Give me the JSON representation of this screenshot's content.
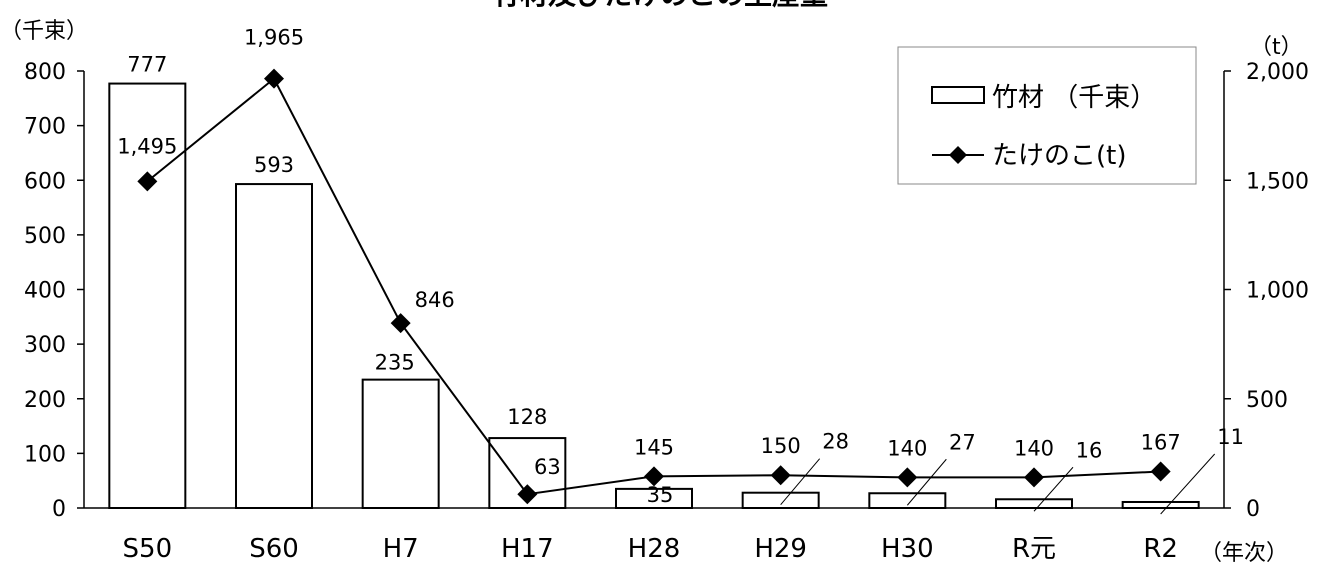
{
  "chart_data": {
    "type": "bar+line",
    "title": "竹材及びたけのこの生産量",
    "categories": [
      "S50",
      "S60",
      "H7",
      "H17",
      "H28",
      "H29",
      "H30",
      "R元",
      "R2"
    ],
    "x_unit": "（年次）",
    "series": [
      {
        "name": "竹材 （千束）",
        "type": "bar",
        "axis": "left",
        "values": [
          777,
          593,
          235,
          128,
          35,
          28,
          27,
          16,
          11
        ]
      },
      {
        "name": "たけのこ(t)",
        "type": "line",
        "axis": "right",
        "values": [
          1495,
          1965,
          846,
          63,
          145,
          150,
          140,
          140,
          167
        ]
      }
    ],
    "y_left": {
      "unit": "（千束）",
      "ylim": [
        0,
        800
      ],
      "ticks": [
        "0",
        "100",
        "200",
        "300",
        "400",
        "500",
        "600",
        "700",
        "800"
      ]
    },
    "y_right": {
      "unit": "（t）",
      "ylim": [
        0,
        2000
      ],
      "ticks": [
        "0",
        "500",
        "1,000",
        "1,500",
        "2,000"
      ]
    },
    "bar_labels": [
      "777",
      "593",
      "235",
      "128",
      "35",
      "28",
      "27",
      "16",
      "11"
    ],
    "line_labels": [
      "1,495",
      "1,965",
      "846",
      "63",
      "145",
      "150",
      "140",
      "140",
      "167"
    ],
    "legend_position": "top-right",
    "grid": false
  }
}
